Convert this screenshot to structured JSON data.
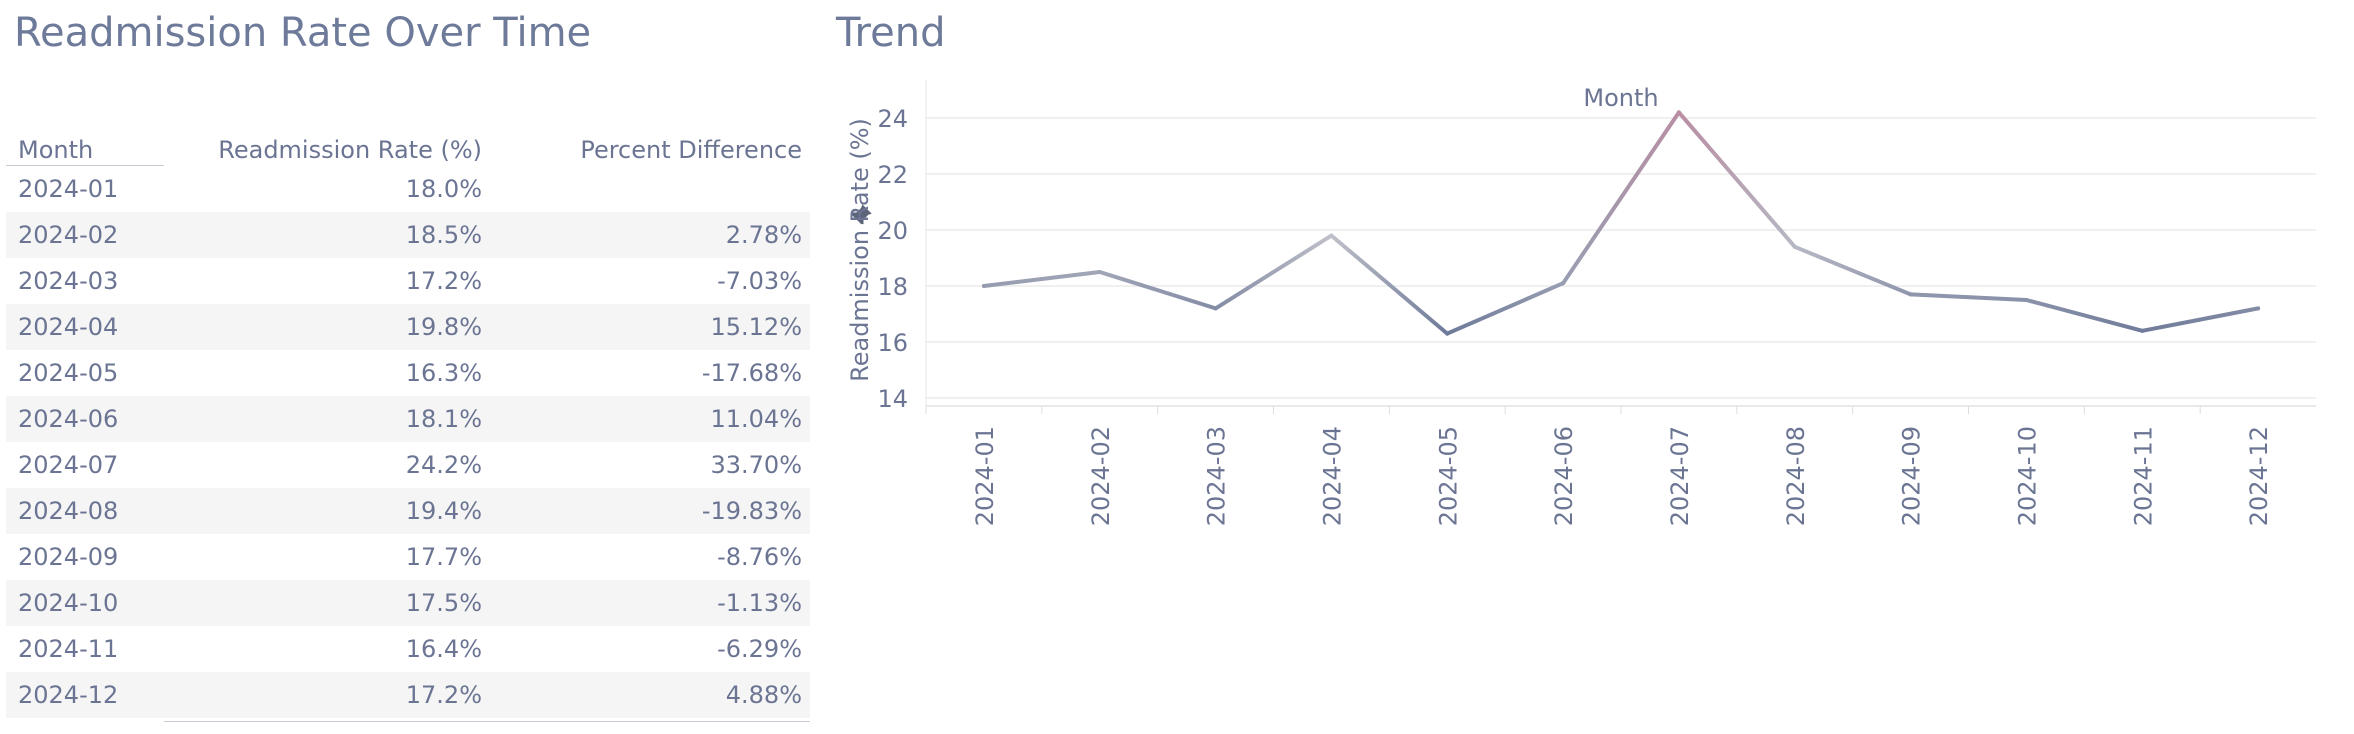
{
  "titles": {
    "left": "Readmission Rate Over Time",
    "right": "Trend"
  },
  "table": {
    "headers": [
      "Month",
      "Readmission Rate (%)",
      "Percent Difference"
    ],
    "rows": [
      {
        "month": "2024-01",
        "rate": "18.0%",
        "diff": ""
      },
      {
        "month": "2024-02",
        "rate": "18.5%",
        "diff": "2.78%"
      },
      {
        "month": "2024-03",
        "rate": "17.2%",
        "diff": "-7.03%"
      },
      {
        "month": "2024-04",
        "rate": "19.8%",
        "diff": "15.12%"
      },
      {
        "month": "2024-05",
        "rate": "16.3%",
        "diff": "-17.68%"
      },
      {
        "month": "2024-06",
        "rate": "18.1%",
        "diff": "11.04%"
      },
      {
        "month": "2024-07",
        "rate": "24.2%",
        "diff": "33.70%"
      },
      {
        "month": "2024-08",
        "rate": "19.4%",
        "diff": "-19.83%"
      },
      {
        "month": "2024-09",
        "rate": "17.7%",
        "diff": "-8.76%"
      },
      {
        "month": "2024-10",
        "rate": "17.5%",
        "diff": "-1.13%"
      },
      {
        "month": "2024-11",
        "rate": "16.4%",
        "diff": "-6.29%"
      },
      {
        "month": "2024-12",
        "rate": "17.2%",
        "diff": "4.88%"
      }
    ]
  },
  "chart_data": {
    "type": "line",
    "title": "",
    "xlabel": "Month",
    "ylabel": "Readmission Rate (%)",
    "x": [
      "2024-01",
      "2024-02",
      "2024-03",
      "2024-04",
      "2024-05",
      "2024-06",
      "2024-07",
      "2024-08",
      "2024-09",
      "2024-10",
      "2024-11",
      "2024-12"
    ],
    "values": [
      18.0,
      18.5,
      17.2,
      19.8,
      16.3,
      18.1,
      24.2,
      19.4,
      17.7,
      17.5,
      16.4,
      17.2
    ],
    "yticks": [
      14,
      16,
      18,
      20,
      22,
      24
    ],
    "ylim": [
      13.5,
      25
    ],
    "grid": true,
    "color_low": "#6e7a99",
    "color_mid": "#c4c4cc",
    "color_high": "#b98ea3"
  },
  "icons": {
    "pin": "pin-icon"
  }
}
